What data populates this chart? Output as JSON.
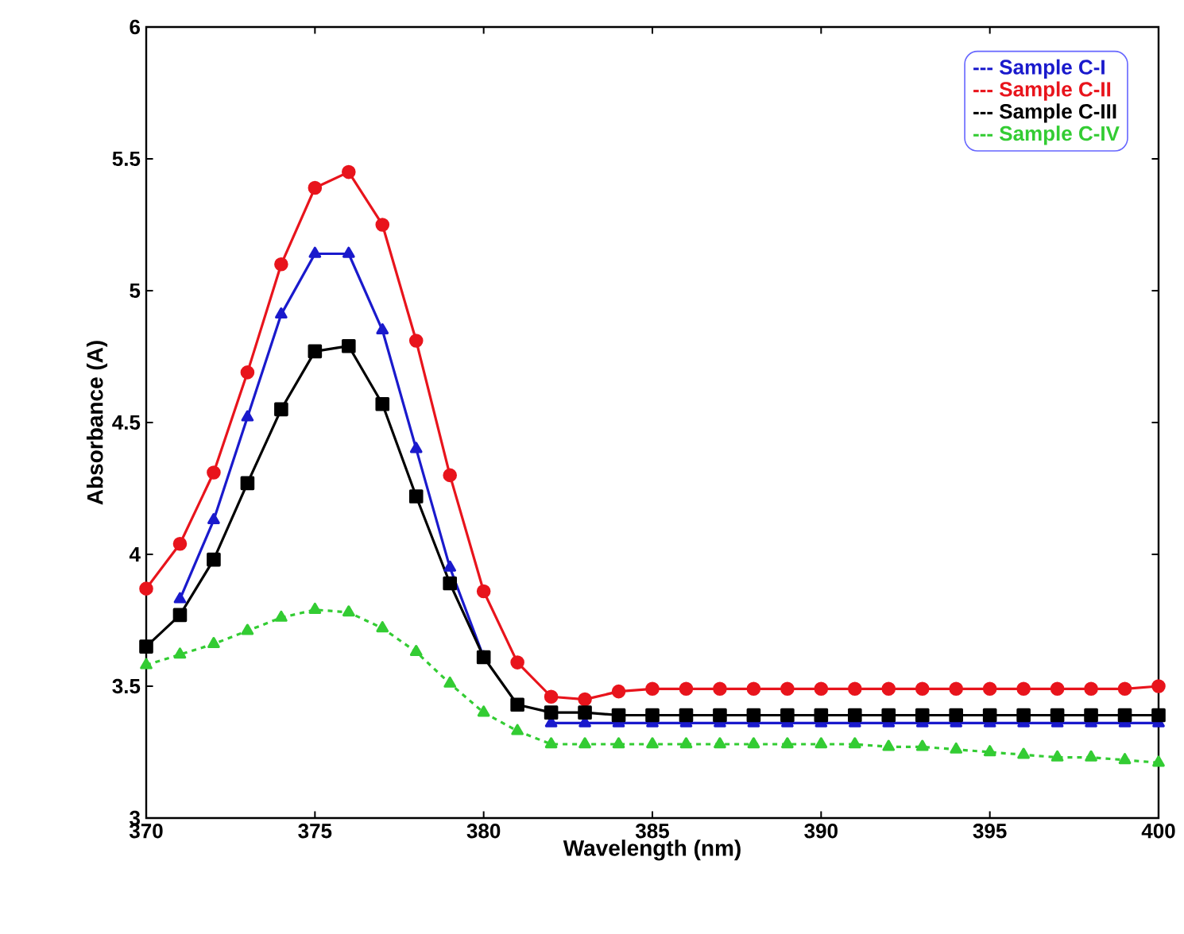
{
  "chart_data": {
    "type": "line",
    "xlabel": "Wavelength (nm)",
    "ylabel": "Absorbance (A)",
    "x": [
      370,
      371,
      372,
      373,
      374,
      375,
      376,
      377,
      378,
      379,
      380,
      381,
      382,
      383,
      384,
      385,
      386,
      387,
      388,
      389,
      390,
      391,
      392,
      393,
      394,
      395,
      396,
      397,
      398,
      399,
      400
    ],
    "xlim": [
      370,
      400
    ],
    "ylim": [
      3,
      6
    ],
    "xticks": [
      370,
      375,
      380,
      385,
      390,
      395,
      400
    ],
    "yticks": [
      3,
      3.5,
      4,
      4.5,
      5,
      5.5,
      6
    ],
    "legend": "top right",
    "grid": false,
    "series": [
      {
        "name": "--- Sample C-I",
        "color": "#1a1acc",
        "marker": "triangle",
        "line_style": "solid",
        "values": [
          null,
          3.83,
          4.13,
          4.52,
          4.91,
          5.14,
          5.14,
          4.85,
          4.4,
          3.95,
          3.61,
          null,
          3.36,
          3.36,
          3.36,
          3.36,
          3.36,
          3.36,
          3.36,
          3.36,
          3.36,
          3.36,
          3.36,
          3.36,
          3.36,
          3.36,
          3.36,
          3.36,
          3.36,
          3.36,
          3.36
        ]
      },
      {
        "name": "--- Sample C-II",
        "color": "#e8141c",
        "marker": "circle",
        "line_style": "solid",
        "values": [
          3.87,
          4.04,
          4.31,
          4.69,
          5.1,
          5.39,
          5.45,
          5.25,
          4.81,
          4.3,
          3.86,
          3.59,
          3.46,
          3.45,
          3.48,
          3.49,
          3.49,
          3.49,
          3.49,
          3.49,
          3.49,
          3.49,
          3.49,
          3.49,
          3.49,
          3.49,
          3.49,
          3.49,
          3.49,
          3.49,
          3.5
        ]
      },
      {
        "name": "--- Sample C-III",
        "color": "#000000",
        "marker": "square",
        "line_style": "solid",
        "values": [
          3.65,
          3.77,
          3.98,
          4.27,
          4.55,
          4.77,
          4.79,
          4.57,
          4.22,
          3.89,
          3.61,
          3.43,
          3.4,
          3.4,
          3.39,
          3.39,
          3.39,
          3.39,
          3.39,
          3.39,
          3.39,
          3.39,
          3.39,
          3.39,
          3.39,
          3.39,
          3.39,
          3.39,
          3.39,
          3.39,
          3.39
        ]
      },
      {
        "name": "--- Sample C-IV",
        "color": "#33cc33",
        "marker": "triangle",
        "line_style": "dashed",
        "values": [
          3.58,
          3.62,
          3.66,
          3.71,
          3.76,
          3.79,
          3.78,
          3.72,
          3.63,
          3.51,
          3.4,
          3.33,
          3.28,
          3.28,
          3.28,
          3.28,
          3.28,
          3.28,
          3.28,
          3.28,
          3.28,
          3.28,
          3.27,
          3.27,
          3.26,
          3.25,
          3.24,
          3.23,
          3.23,
          3.22,
          3.21
        ]
      }
    ]
  }
}
